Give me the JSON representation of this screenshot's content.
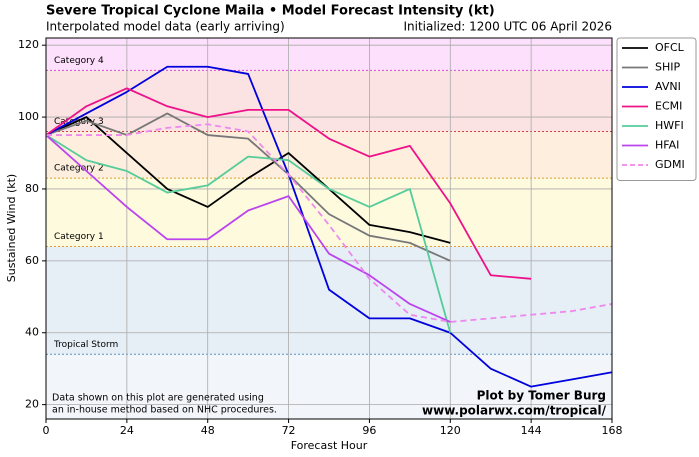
{
  "chart_data": {
    "type": "line",
    "title": "Severe Tropical Cyclone Maila • Model Forecast Intensity (kt)",
    "subtitle": "Interpolated model data (early arriving)",
    "initialized": "Initialized: 1200 UTC 06 April 2026",
    "xlabel": "Forecast Hour",
    "ylabel": "Sustained Wind (kt)",
    "note": [
      "Data shown on this plot are generated using",
      "an in-house method based on NHC procedures."
    ],
    "credit": [
      "Plot by Tomer Burg",
      "www.polarwx.com/tropical/"
    ],
    "x": [
      0,
      12,
      24,
      36,
      48,
      60,
      72,
      84,
      96,
      108,
      120,
      132,
      144,
      156,
      168
    ],
    "xlim": [
      0,
      168
    ],
    "xticks": [
      0,
      24,
      48,
      72,
      96,
      120,
      144,
      168
    ],
    "ylim": [
      16,
      122
    ],
    "yticks": [
      20,
      40,
      60,
      80,
      100,
      120
    ],
    "grid": true,
    "legend": "outside-right",
    "background": "#f2f6fb",
    "bands": [
      {
        "label": "Tropical Storm",
        "min": 34,
        "color": "#e6eef6",
        "label_color": "#5a8fc0"
      },
      {
        "label": "Category 1",
        "min": 64,
        "color": "#fdfadd",
        "label_color": "#e0a030"
      },
      {
        "label": "Category 2",
        "min": 83,
        "color": "#fdeedd",
        "label_color": "#e0a030"
      },
      {
        "label": "Category 3",
        "min": 96,
        "color": "#fbe3e3",
        "label_color": "#d04040"
      },
      {
        "label": "Category 4",
        "min": 113,
        "color": "#fde0fb",
        "label_color": "#d050d0"
      }
    ],
    "series": [
      {
        "name": "OFCL",
        "color": "#000000",
        "values": [
          95,
          100,
          90,
          80,
          75,
          83,
          90,
          80,
          70,
          68,
          65,
          null,
          null,
          null,
          null
        ]
      },
      {
        "name": "SHIP",
        "color": "#777777",
        "values": [
          95,
          99,
          95,
          101,
          95,
          94,
          84,
          73,
          67,
          65,
          60,
          null,
          null,
          null,
          null
        ]
      },
      {
        "name": "AVNI",
        "color": "#0000dd",
        "values": [
          95,
          101,
          107,
          114,
          114,
          112,
          84,
          52,
          44,
          44,
          40,
          30,
          25,
          27,
          29
        ]
      },
      {
        "name": "ECMI",
        "color": "#ee1188",
        "values": [
          95,
          103,
          108,
          103,
          100,
          102,
          102,
          94,
          89,
          92,
          76,
          56,
          55,
          null,
          null
        ]
      },
      {
        "name": "HWFI",
        "color": "#55cc99",
        "values": [
          95,
          88,
          85,
          79,
          81,
          89,
          88,
          80,
          75,
          80,
          40,
          null,
          null,
          null,
          null
        ]
      },
      {
        "name": "HFAI",
        "color": "#bb44ee",
        "values": [
          95,
          85,
          75,
          66,
          66,
          74,
          78,
          62,
          56,
          48,
          43,
          null,
          null,
          null,
          null
        ]
      },
      {
        "name": "GDMI",
        "color": "#ee88ee",
        "dashed": true,
        "values": [
          95,
          95,
          95,
          97,
          98,
          96,
          84,
          70,
          55,
          45,
          43,
          44,
          45,
          46,
          48
        ]
      }
    ]
  }
}
